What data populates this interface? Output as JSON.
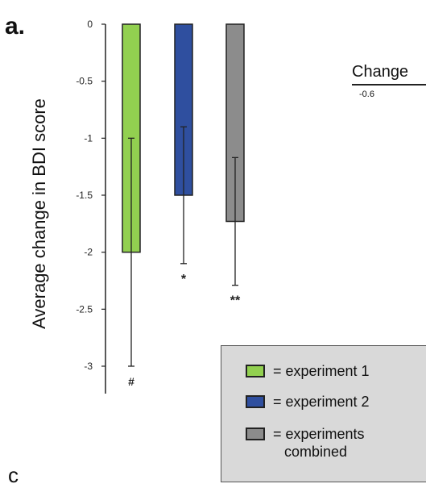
{
  "panel_letter": "a.",
  "right_panel": {
    "title": "Change",
    "tick_label": "-0.6"
  },
  "bottom_letter": "c",
  "chart_data": {
    "type": "bar",
    "ylabel": "Average change in BDI score",
    "ylim": [
      -3,
      0
    ],
    "yticks": [
      0,
      -0.5,
      -1,
      -1.5,
      -2,
      -2.5,
      -3
    ],
    "ytick_labels": [
      "0",
      "-0.5",
      "-1",
      "-1.5",
      "-2",
      "-2.5",
      "-3"
    ],
    "series": [
      {
        "name": "experiment 1",
        "value": -2.0,
        "error": 1.0,
        "color": "#92d050",
        "marker": "#"
      },
      {
        "name": "experiment 2",
        "value": -1.5,
        "error": 0.6,
        "color": "#2f4f9f",
        "marker": "*"
      },
      {
        "name": "experiments combined",
        "value": -1.73,
        "error": 0.56,
        "color": "#8c8c8c",
        "marker": "**"
      }
    ],
    "legend": {
      "position": "bottom-right",
      "items": [
        {
          "text": "= experiment 1",
          "color": "#92d050"
        },
        {
          "text": "= experiment 2",
          "color": "#2f4f9f"
        },
        {
          "text": "= experiments",
          "text2": "combined",
          "color": "#8c8c8c"
        }
      ]
    }
  }
}
